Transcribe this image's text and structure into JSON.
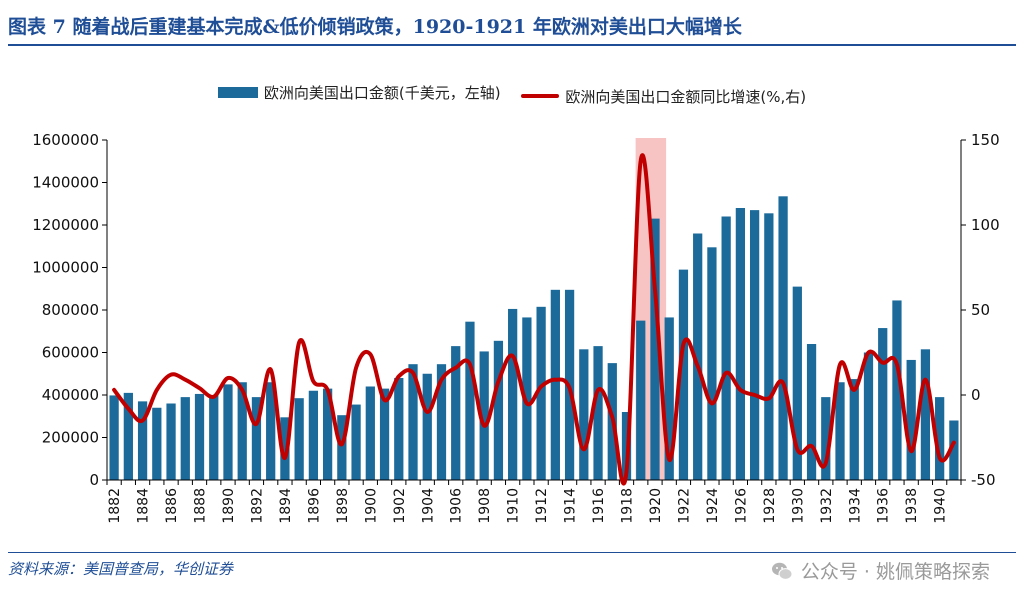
{
  "header": {
    "title": "图表 7   随着战后重建基本完成&低价倾销政策，1920-1921 年欧洲对美出口大幅增长"
  },
  "legend": {
    "bar_label": "欧洲向美国出口金额(千美元，左轴)",
    "line_label": "欧洲向美国出口金额同比增速(%,右)"
  },
  "footer": {
    "source": "资料来源：美国普查局，华创证券",
    "watermark": "公众号 · 姚佩策略探索"
  },
  "colors": {
    "bar": "#1b6a9a",
    "line": "#c00000",
    "highlight": "#f7c3c3",
    "title": "#1f4e96"
  },
  "chart_data": {
    "type": "bar+line",
    "x": [
      1882,
      1883,
      1884,
      1885,
      1886,
      1887,
      1888,
      1889,
      1890,
      1891,
      1892,
      1893,
      1894,
      1895,
      1896,
      1897,
      1898,
      1899,
      1900,
      1901,
      1902,
      1903,
      1904,
      1905,
      1906,
      1907,
      1908,
      1909,
      1910,
      1911,
      1912,
      1913,
      1914,
      1915,
      1916,
      1917,
      1918,
      1919,
      1920,
      1921,
      1922,
      1923,
      1924,
      1925,
      1926,
      1927,
      1928,
      1929,
      1930,
      1931,
      1932,
      1933,
      1934,
      1935,
      1936,
      1937,
      1938,
      1939,
      1940,
      1941
    ],
    "xtick_labels": [
      "1882",
      "1884",
      "1886",
      "1888",
      "1890",
      "1892",
      "1894",
      "1896",
      "1898",
      "1900",
      "1902",
      "1904",
      "1906",
      "1908",
      "1910",
      "1912",
      "1914",
      "1916",
      "1918",
      "1920",
      "1922",
      "1924",
      "1926",
      "1928",
      "1930",
      "1932",
      "1934",
      "1936",
      "1938",
      "1940"
    ],
    "series": [
      {
        "name": "欧洲向美国出口金额(千美元，左轴)",
        "type": "bar",
        "axis": "left",
        "values": [
          398000,
          410000,
          370000,
          340000,
          360000,
          390000,
          405000,
          400000,
          450000,
          460000,
          390000,
          460000,
          295000,
          385000,
          420000,
          430000,
          305000,
          355000,
          440000,
          430000,
          480000,
          545000,
          500000,
          545000,
          630000,
          745000,
          605000,
          655000,
          805000,
          765000,
          815000,
          895000,
          895000,
          615000,
          630000,
          550000,
          320000,
          750000,
          1230000,
          765000,
          990000,
          1160000,
          1095000,
          1240000,
          1280000,
          1270000,
          1255000,
          1335000,
          910000,
          640000,
          390000,
          460000,
          475000,
          600000,
          715000,
          845000,
          565000,
          615000,
          390000,
          280000
        ]
      },
      {
        "name": "欧洲向美国出口金额同比增速(%,右)",
        "type": "line",
        "axis": "right",
        "values": [
          3,
          -8,
          -15,
          3,
          12,
          9,
          4,
          -1,
          10,
          3,
          -17,
          15,
          -37,
          31,
          8,
          3,
          -29,
          16,
          24,
          -3,
          11,
          13,
          -10,
          9,
          16,
          18,
          -18,
          8,
          23,
          -5,
          5,
          9,
          4,
          -32,
          3,
          -13,
          -45,
          138,
          62,
          -38,
          30,
          17,
          -5,
          13,
          3,
          0,
          -2,
          7,
          -32,
          -30,
          -40,
          18,
          3,
          25,
          19,
          18,
          -33,
          9,
          -37,
          -28
        ]
      }
    ],
    "left_axis": {
      "range": [
        0,
        1600000
      ],
      "ticks": [
        "0",
        "200000",
        "400000",
        "600000",
        "800000",
        "1000000",
        "1200000",
        "1400000",
        "1600000"
      ]
    },
    "right_axis": {
      "range": [
        -50,
        150
      ],
      "ticks": [
        "-50",
        "0",
        "50",
        "100",
        "150"
      ]
    },
    "highlight_years": [
      1919,
      1920
    ],
    "grid": false,
    "legend_position": "top-center"
  }
}
